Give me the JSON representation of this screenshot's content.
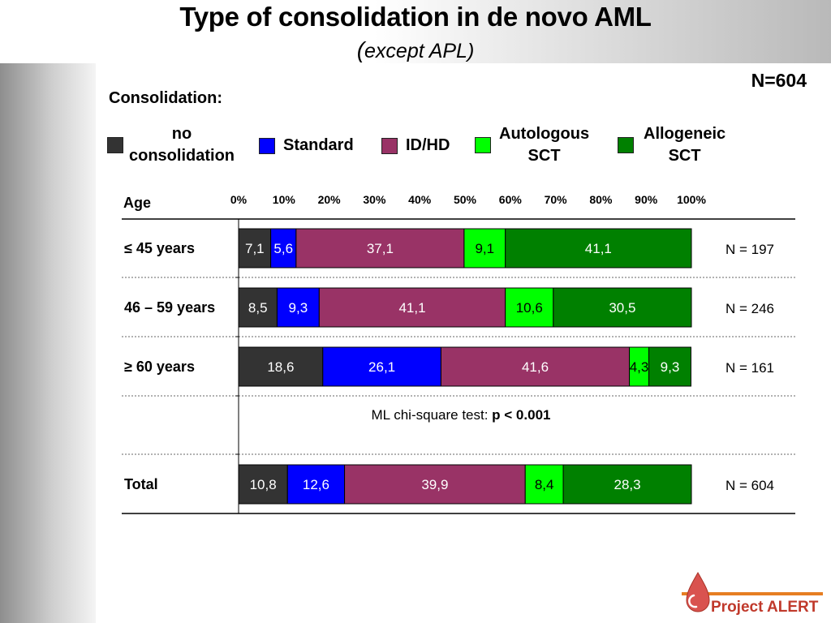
{
  "slide": {
    "title": "Type of consolidation in de novo AML",
    "subtitle_paren": "(",
    "subtitle_text": "except APL)",
    "n_total": "N=604",
    "consolidation_label": "Consolidation:",
    "annotation_prefix": "ML chi-square test: ",
    "annotation_bold": "p < 0.001",
    "logo_text": "Project ALERT"
  },
  "colors": {
    "no_consolidation": "#333333",
    "standard": "#0000ff",
    "idhd": "#993366",
    "autologous": "#00ff00",
    "allogeneic": "#008000",
    "logo": "#c0392b"
  },
  "legend": [
    {
      "label": "no\nconsolidation",
      "color": "#333333"
    },
    {
      "label": "Standard",
      "color": "#0000ff"
    },
    {
      "label": "ID/HD",
      "color": "#993366"
    },
    {
      "label": "Autologous\nSCT",
      "color": "#00ff00"
    },
    {
      "label": "Allogeneic\nSCT",
      "color": "#008000"
    }
  ],
  "chart_data": {
    "type": "bar",
    "orientation": "horizontal",
    "stacked": true,
    "row_header": "Age",
    "x_ticks": [
      "0%",
      "10%",
      "20%",
      "30%",
      "40%",
      "50%",
      "60%",
      "70%",
      "80%",
      "90%",
      "100%"
    ],
    "xlim": [
      0,
      100
    ],
    "categories": [
      "≤ 45 years",
      "46 – 59 years",
      "≥ 60 years",
      "Total"
    ],
    "row_n": [
      "N = 197",
      "N = 246",
      "N = 161",
      "N = 604"
    ],
    "series": [
      {
        "name": "no consolidation",
        "values": [
          7.1,
          8.5,
          18.6,
          10.8
        ],
        "labels": [
          "7,1",
          "8,5",
          "18,6",
          "10,8"
        ]
      },
      {
        "name": "Standard",
        "values": [
          5.6,
          9.3,
          26.1,
          12.6
        ],
        "labels": [
          "5,6",
          "9,3",
          "26,1",
          "12,6"
        ]
      },
      {
        "name": "ID/HD",
        "values": [
          37.1,
          41.1,
          41.6,
          39.9
        ],
        "labels": [
          "37,1",
          "41,1",
          "41,6",
          "39,9"
        ]
      },
      {
        "name": "Autologous SCT",
        "values": [
          9.1,
          10.6,
          4.3,
          8.4
        ],
        "labels": [
          "9,1",
          "10,6",
          "4,3",
          "8,4"
        ]
      },
      {
        "name": "Allogeneic SCT",
        "values": [
          41.1,
          30.5,
          9.3,
          28.3
        ],
        "labels": [
          "41,1",
          "30,5",
          "9,3",
          "28,3"
        ]
      }
    ]
  }
}
